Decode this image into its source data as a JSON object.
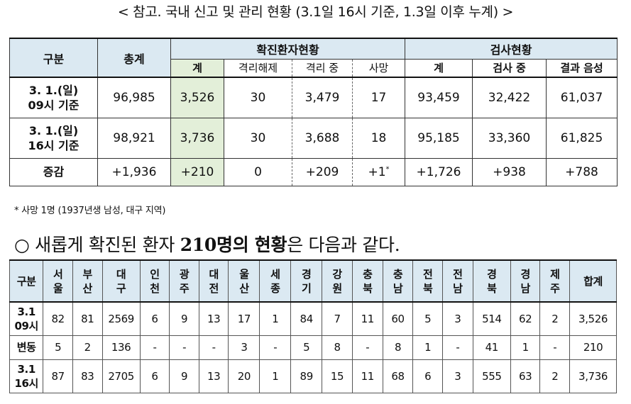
{
  "title": "< 참고. 국내 신고 및 관리 현황 (3.1일 16시 기준, 1.3일 이후 누계) >",
  "table1": {
    "h_gubun": "구분",
    "h_total": "총계",
    "h_confirmed": "확진환자현황",
    "h_test": "검사현황",
    "sub": {
      "conf_sum": "계",
      "released": "격리해제",
      "isolating": "격리 중",
      "death": "사망",
      "test_sum": "계",
      "testing": "검사 중",
      "negative": "결과 음성"
    },
    "rows": [
      {
        "label1": "3. 1.(일)",
        "label2": "09시 기준",
        "total": "96,985",
        "conf": "3,526",
        "released": "30",
        "isolating": "3,479",
        "death": "17",
        "test_sum": "93,459",
        "testing": "32,422",
        "negative": "61,037"
      },
      {
        "label1": "3. 1.(일)",
        "label2": "16시 기준",
        "total": "98,921",
        "conf": "3,736",
        "released": "30",
        "isolating": "3,688",
        "death": "18",
        "test_sum": "95,185",
        "testing": "33,360",
        "negative": "61,825"
      }
    ],
    "diff": {
      "label": "증감",
      "total": "+1,936",
      "conf": "+210",
      "released": "0",
      "isolating": "+209",
      "death": "+1",
      "death_mark": "*",
      "test_sum": "+1,726",
      "testing": "+938",
      "negative": "+788"
    }
  },
  "note": "* 사망 1명 (1937년생 남성, 대구 지역)",
  "heading": {
    "prefix": "○ 새롭게 확진된 환자 ",
    "bold1": "210명의 현황",
    "suffix": "은 다음과 같다."
  },
  "table2": {
    "h_gubun": "구분",
    "regions": [
      [
        "서",
        "울"
      ],
      [
        "부",
        "산"
      ],
      [
        "대",
        "구"
      ],
      [
        "인",
        "천"
      ],
      [
        "광",
        "주"
      ],
      [
        "대",
        "전"
      ],
      [
        "울",
        "산"
      ],
      [
        "세",
        "종"
      ],
      [
        "경",
        "기"
      ],
      [
        "강",
        "원"
      ],
      [
        "충",
        "북"
      ],
      [
        "충",
        "남"
      ],
      [
        "전",
        "북"
      ],
      [
        "전",
        "남"
      ],
      [
        "경",
        "북"
      ],
      [
        "경",
        "남"
      ],
      [
        "제",
        "주"
      ]
    ],
    "h_sum": "합계",
    "rows": [
      {
        "label1": "3.1",
        "label2": "09시",
        "values": [
          "82",
          "81",
          "2569",
          "6",
          "9",
          "13",
          "17",
          "1",
          "84",
          "7",
          "11",
          "60",
          "5",
          "3",
          "514",
          "62",
          "2"
        ],
        "sum": "3,526"
      },
      {
        "label1": "변동",
        "label2": "",
        "values": [
          "5",
          "2",
          "136",
          "-",
          "-",
          "-",
          "3",
          "-",
          "5",
          "8",
          "-",
          "8",
          "1",
          "-",
          "41",
          "1",
          "-"
        ],
        "sum": "210"
      },
      {
        "label1": "3.1",
        "label2": "16시",
        "values": [
          "87",
          "83",
          "2705",
          "6",
          "9",
          "13",
          "20",
          "1",
          "89",
          "15",
          "11",
          "68",
          "6",
          "3",
          "555",
          "63",
          "2"
        ],
        "sum": "3,736"
      }
    ]
  }
}
